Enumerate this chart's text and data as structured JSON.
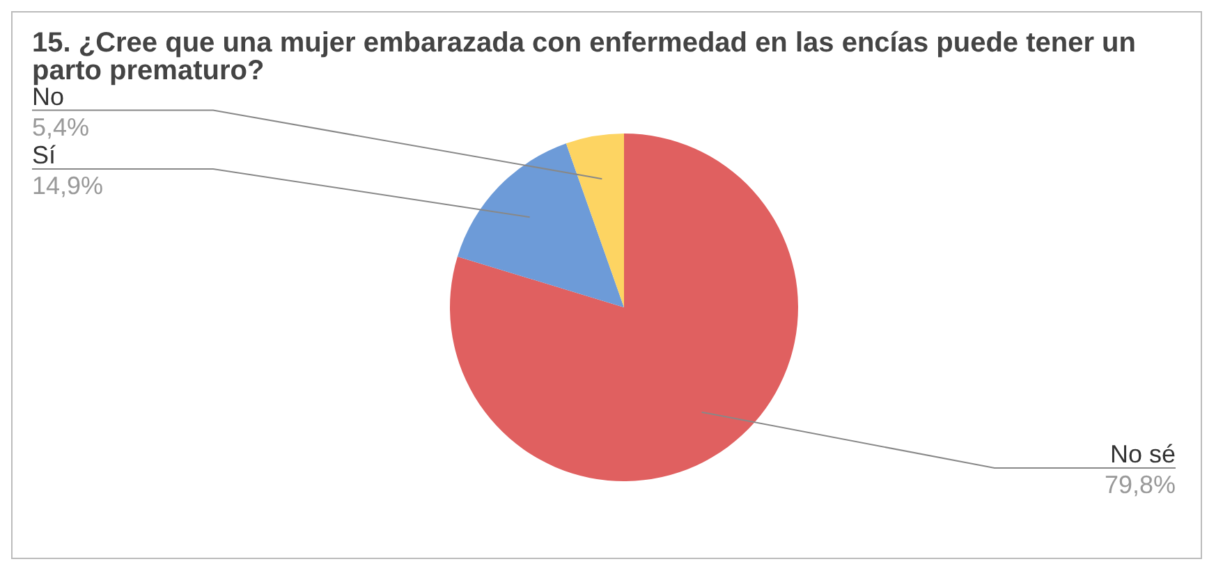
{
  "chart_data": {
    "type": "pie",
    "title": "15. ¿Cree que una mujer embarazada con enfermedad en las encías puede tener un parto prematuro?",
    "categories": [
      "No sé",
      "Sí",
      "No"
    ],
    "values": [
      79.8,
      14.9,
      5.4
    ],
    "value_labels": [
      "79,8%",
      "14,9%",
      "5,4%"
    ],
    "colors": [
      "#e06060",
      "#6d9bd8",
      "#fdd462"
    ],
    "legend": false
  }
}
